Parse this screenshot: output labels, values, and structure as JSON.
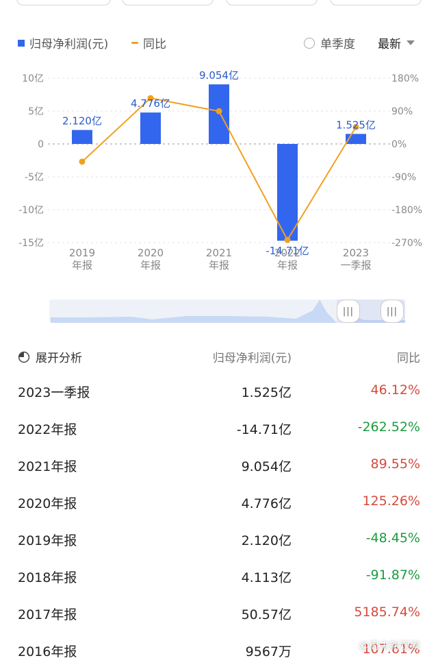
{
  "legend": {
    "profit_label": "归母净利润(元)",
    "yoy_label": "同比",
    "quarterly_label": "单季度",
    "latest_label": "最新"
  },
  "colors": {
    "bar": "#3366ee",
    "line": "#f0a020",
    "positive": "#d64a3d",
    "negative": "#1a9c3e"
  },
  "chart_data": {
    "type": "bar",
    "categories": [
      "2019\n年报",
      "2020\n年报",
      "2021\n年报",
      "2022\n年报",
      "2023\n一季报"
    ],
    "series": [
      {
        "name": "归母净利润(元)",
        "type": "bar",
        "axis": "left",
        "values": [
          2.12,
          4.776,
          9.054,
          -14.71,
          1.525
        ],
        "labels": [
          "2.120亿",
          "4.776亿",
          "9.054亿",
          "-14.71亿",
          "1.525亿"
        ]
      },
      {
        "name": "同比",
        "type": "line",
        "axis": "right",
        "values": [
          -48.45,
          125.26,
          89.55,
          -262.52,
          46.12
        ]
      }
    ],
    "y_left": {
      "ticks": [
        10,
        5,
        0,
        -5,
        -10,
        -15
      ],
      "tick_labels": [
        "10亿",
        "5亿",
        "0",
        "-5亿",
        "-10亿",
        "-15亿"
      ],
      "range": [
        -15,
        10
      ]
    },
    "y_right": {
      "ticks": [
        180,
        90,
        0,
        -90,
        -180,
        -270
      ],
      "tick_labels": [
        "180%",
        "90%",
        "0%",
        "-90%",
        "-180%",
        "-270%"
      ],
      "range": [
        -270,
        180
      ]
    },
    "grid": true,
    "legend": "top-left"
  },
  "navigator": {
    "handle_left": "|||",
    "handle_right": "|||"
  },
  "table": {
    "expand_label": "展开分析",
    "col_profit": "归母净利润(元)",
    "col_yoy": "同比",
    "rows": [
      {
        "period": "2023一季报",
        "profit": "1.525亿",
        "yoy": "46.12%",
        "sign": "pos"
      },
      {
        "period": "2022年报",
        "profit": "-14.71亿",
        "yoy": "-262.52%",
        "sign": "neg"
      },
      {
        "period": "2021年报",
        "profit": "9.054亿",
        "yoy": "89.55%",
        "sign": "pos"
      },
      {
        "period": "2020年报",
        "profit": "4.776亿",
        "yoy": "125.26%",
        "sign": "pos"
      },
      {
        "period": "2019年报",
        "profit": "2.120亿",
        "yoy": "-48.45%",
        "sign": "neg"
      },
      {
        "period": "2018年报",
        "profit": "4.113亿",
        "yoy": "-91.87%",
        "sign": "neg"
      },
      {
        "period": "2017年报",
        "profit": "50.57亿",
        "yoy": "5185.74%",
        "sign": "pos"
      },
      {
        "period": "2016年报",
        "profit": "9567万",
        "yoy": "107.61%",
        "sign": "pos"
      }
    ]
  },
  "watermark": "@周末新观察"
}
